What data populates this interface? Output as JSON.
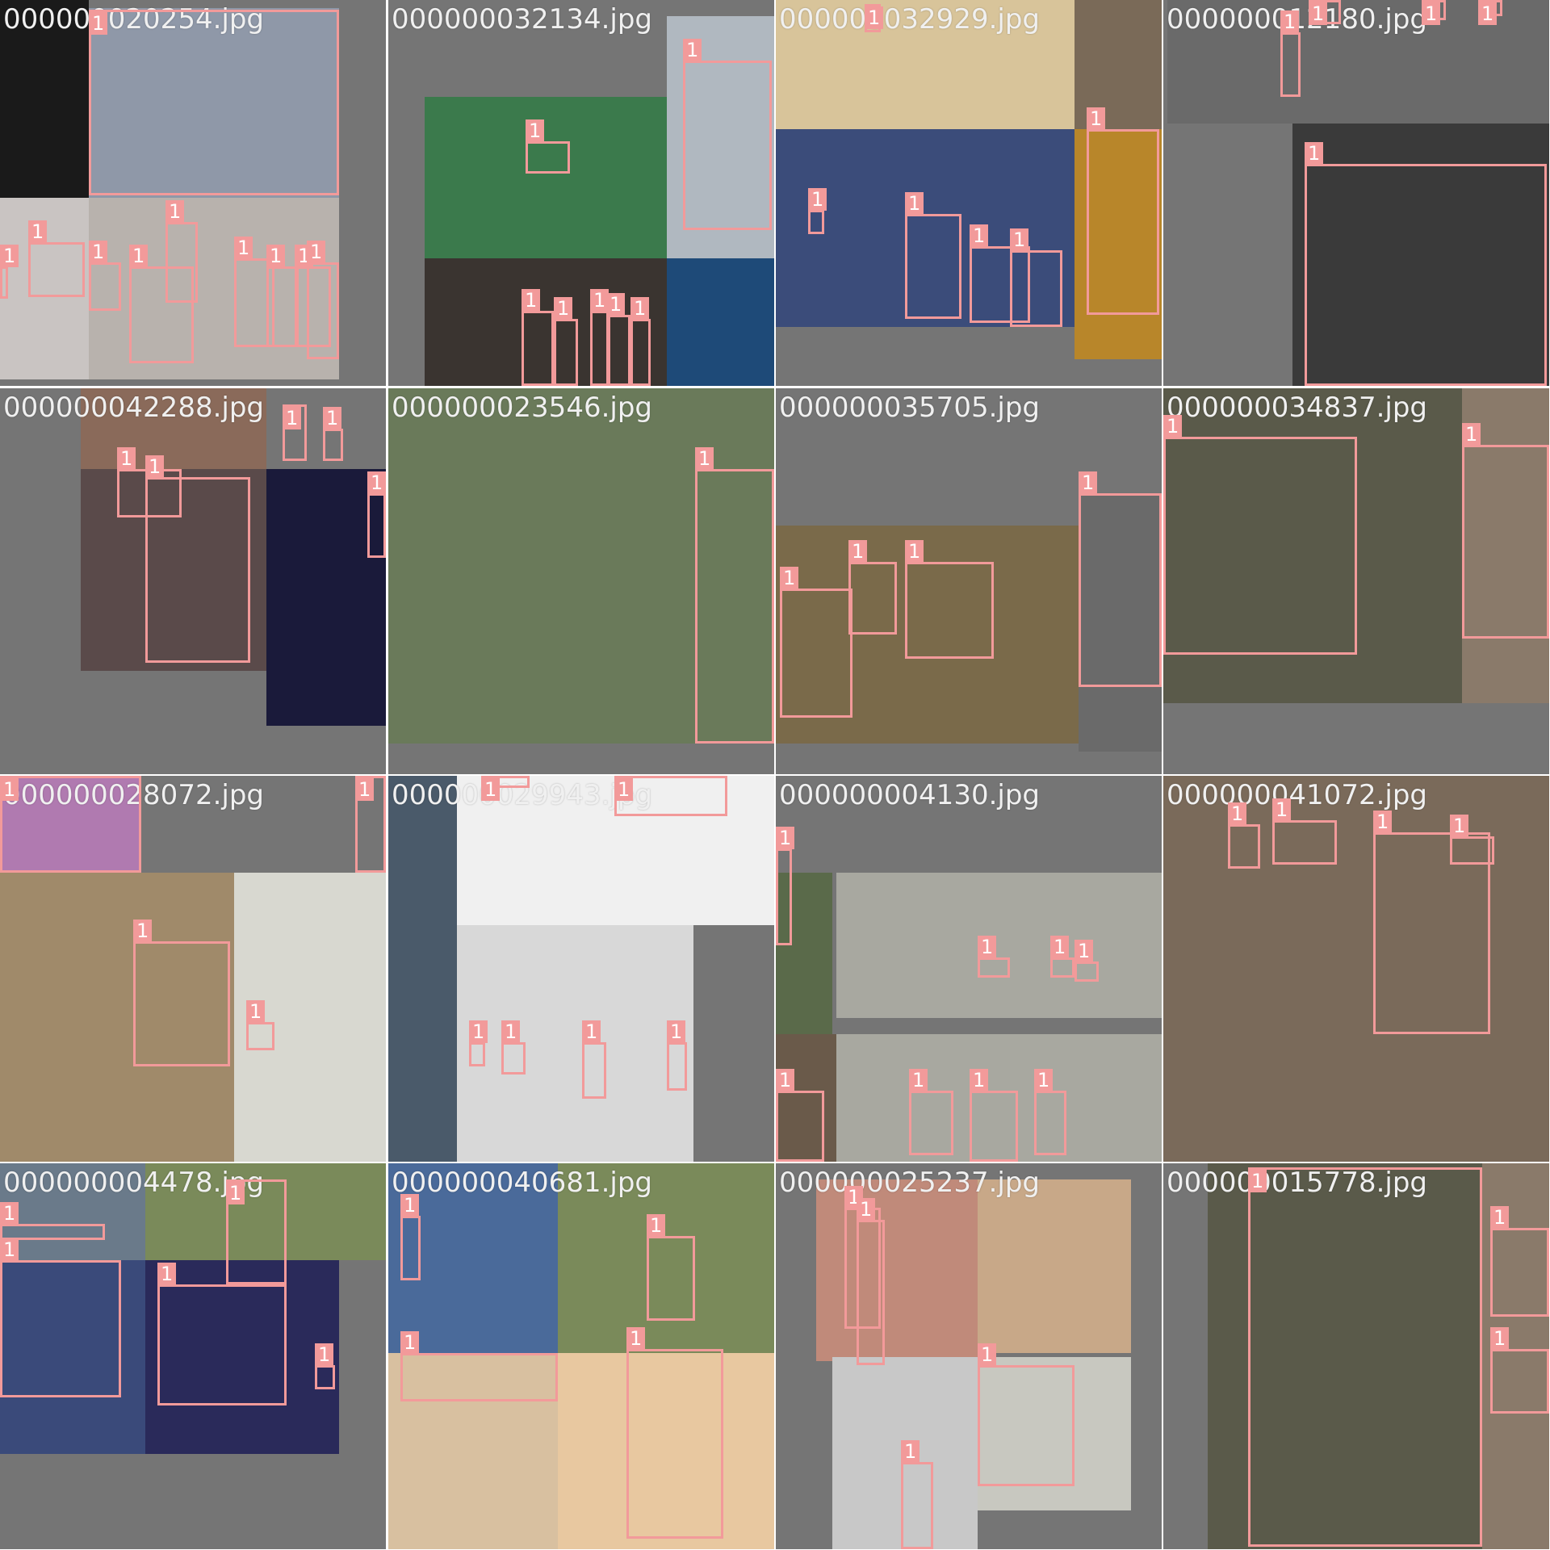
{
  "colors": {
    "tile_background": "#757575",
    "box": "#f29a9a",
    "label_text": "#ffffff",
    "filename_text": "#f0f0f0"
  },
  "box_label": "1",
  "tiles": [
    {
      "filename": "000000020254.jpg"
    },
    {
      "filename": "000000032134.jpg"
    },
    {
      "filename": "000000032929.jpg"
    },
    {
      "filename": "000000012180.jpg"
    },
    {
      "filename": "000000042288.jpg"
    },
    {
      "filename": "000000023546.jpg"
    },
    {
      "filename": "000000035705.jpg"
    },
    {
      "filename": "000000034837.jpg"
    },
    {
      "filename": "000000028072.jpg"
    },
    {
      "filename": "000000029943.jpg"
    },
    {
      "filename": "000000004130.jpg"
    },
    {
      "filename": "000000041072.jpg"
    },
    {
      "filename": "000000004478.jpg"
    },
    {
      "filename": "000000040681.jpg"
    },
    {
      "filename": "000000025237.jpg"
    },
    {
      "filename": "000000015778.jpg"
    }
  ]
}
